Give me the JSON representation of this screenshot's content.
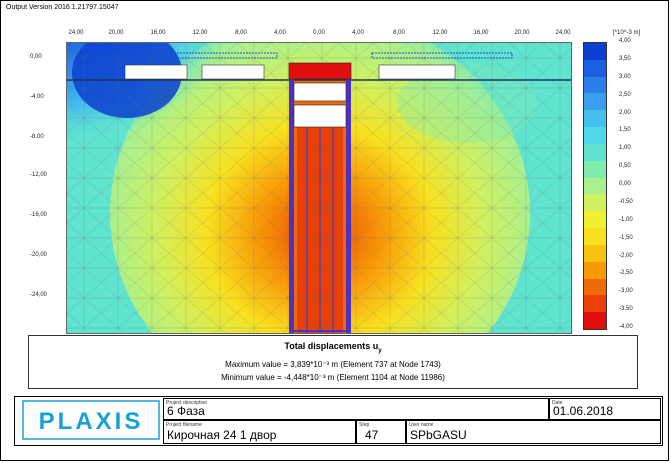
{
  "version_label": "Output Version 2016.1.21797.15047",
  "axes": {
    "top_ticks": [
      "24,00",
      "20,00",
      "16,00",
      "12,00",
      "8,00",
      "4,00",
      "0,00",
      "4,00",
      "8,00",
      "12,00",
      "16,00",
      "20,00",
      "24,00"
    ],
    "left_ticks": [
      "0,00",
      "-4,00",
      "-8,00",
      "-12,00",
      "-16,00",
      "-20,00",
      "-24,00"
    ]
  },
  "legend": {
    "unit": "[*10^-3 m]",
    "values": [
      "4,00",
      "3,50",
      "3,00",
      "2,50",
      "2,00",
      "1,50",
      "1,00",
      "0,50",
      "0,00",
      "-0,50",
      "-1,00",
      "-1,50",
      "-2,00",
      "-2,50",
      "-3,00",
      "-3,50",
      "-4,00"
    ],
    "colors": [
      "#0a3fd0",
      "#1a5fe0",
      "#2a7fe8",
      "#3a9ff0",
      "#44bfee",
      "#4fd8e8",
      "#5fe4d0",
      "#80ecb0",
      "#a8f090",
      "#d0f060",
      "#eef030",
      "#f8e020",
      "#f8c010",
      "#f89a08",
      "#f06a06",
      "#e84006",
      "#e01010"
    ]
  },
  "result": {
    "title": "Total displacements u",
    "title_sub": "y",
    "max_line": "Maximum value = 3,839*10⁻³ m (Element 737 at Node 1743)",
    "min_line": "Minimum value = -4,448*10⁻³ m (Element 1104 at Node 11986)"
  },
  "logo_text": "PLAXIS",
  "footer": {
    "phase_caption": "Project description",
    "phase_value": "6 Фаза",
    "date_caption": "Date",
    "date_value": "01.06.2018",
    "project_caption": "Project filename",
    "project_value": "Кирочная 24 1 двор",
    "step_caption": "Step",
    "step_value": "47",
    "user_caption": "User name",
    "user_value": "SPbGASU"
  }
}
